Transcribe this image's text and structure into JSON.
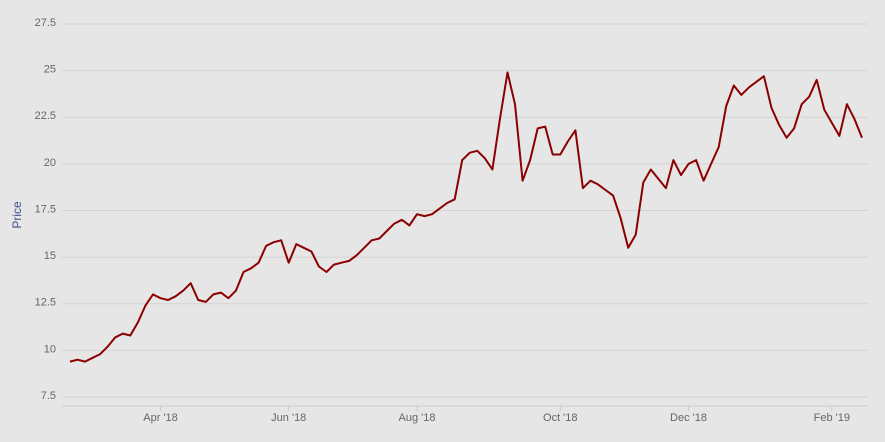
{
  "chart_data": {
    "type": "line",
    "y_label": "Price",
    "categories": [
      null,
      null,
      null,
      null,
      null,
      null,
      null,
      null,
      null,
      null,
      null,
      null,
      "Apr '18",
      null,
      null,
      null,
      null,
      null,
      null,
      null,
      null,
      null,
      null,
      null,
      null,
      null,
      null,
      null,
      null,
      "Jun '18",
      null,
      null,
      null,
      null,
      null,
      null,
      null,
      null,
      null,
      null,
      null,
      null,
      null,
      null,
      null,
      null,
      "Aug '18",
      null,
      null,
      null,
      null,
      null,
      null,
      null,
      null,
      null,
      null,
      null,
      null,
      null,
      null,
      null,
      null,
      null,
      null,
      "Oct '18",
      null,
      null,
      null,
      null,
      null,
      null,
      null,
      null,
      null,
      null,
      null,
      null,
      null,
      null,
      null,
      null,
      "Dec '18",
      null,
      null,
      null,
      null,
      null,
      null,
      null,
      null,
      null,
      null,
      null,
      null,
      null,
      null,
      null,
      null,
      null,
      null,
      "Feb '19",
      null,
      null,
      null,
      null
    ],
    "series": [
      {
        "color": "#8b0000",
        "values": [
          9.4,
          9.5,
          9.4,
          9.6,
          9.8,
          10.2,
          10.7,
          10.9,
          10.8,
          11.5,
          12.4,
          13.0,
          12.8,
          12.7,
          12.9,
          13.2,
          13.6,
          12.7,
          12.6,
          13.0,
          13.1,
          12.8,
          13.2,
          14.2,
          14.4,
          14.7,
          15.6,
          15.8,
          15.9,
          14.7,
          15.7,
          15.5,
          15.3,
          14.5,
          14.2,
          14.6,
          14.7,
          14.8,
          15.1,
          15.5,
          15.9,
          16.0,
          16.4,
          16.8,
          17.0,
          16.7,
          17.3,
          17.2,
          17.3,
          17.6,
          17.9,
          18.1,
          20.2,
          20.6,
          20.7,
          20.3,
          19.7,
          22.4,
          24.9,
          23.2,
          19.1,
          20.2,
          21.9,
          22.0,
          20.5,
          20.5,
          21.2,
          21.8,
          18.7,
          19.1,
          18.9,
          18.6,
          18.3,
          17.1,
          15.5,
          16.2,
          19.0,
          19.7,
          19.2,
          18.7,
          20.2,
          19.4,
          20.0,
          20.2,
          19.1,
          20.0,
          20.9,
          23.1,
          24.2,
          23.7,
          24.1,
          24.4,
          24.7,
          23.0,
          22.1,
          21.4,
          21.9,
          23.2,
          23.6,
          24.5,
          22.9,
          22.2,
          21.5,
          23.2,
          22.4,
          21.4
        ]
      }
    ],
    "ylim": [
      7.5,
      27.5
    ],
    "yticks": [
      7.5,
      10,
      12.5,
      15,
      17.5,
      20,
      22.5,
      25,
      27.5
    ],
    "grid": true
  }
}
